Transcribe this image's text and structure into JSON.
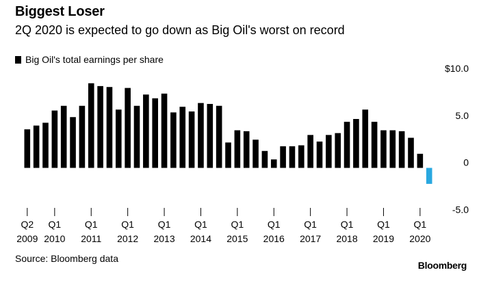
{
  "header": {
    "title": "Biggest Loser",
    "subtitle": "2Q 2020 is expected to go down as Big Oil's worst on record"
  },
  "legend": {
    "label": "Big Oil's total earnings per share"
  },
  "footer": {
    "source": "Source: Bloomberg data",
    "brand": "Bloomberg"
  },
  "colors": {
    "positive": "#000000",
    "negative": "#29a8e0"
  },
  "chart_data": {
    "type": "bar",
    "title": "Biggest Loser",
    "subtitle": "2Q 2020 is expected to go down as Big Oil's worst on record",
    "legend": "Big Oil's total earnings per share",
    "ylim": [
      -5.0,
      10.0
    ],
    "y_ticks": [
      10.0,
      5.0,
      0,
      -5.0
    ],
    "y_tick_labels": [
      "$10.0",
      "5.0",
      "0",
      "-5.0"
    ],
    "x_tick_labels": [
      {
        "index": 0,
        "q": "Q2",
        "year": "2009"
      },
      {
        "index": 3,
        "q": "Q1",
        "year": "2010"
      },
      {
        "index": 7,
        "q": "Q1",
        "year": "2011"
      },
      {
        "index": 11,
        "q": "Q1",
        "year": "2012"
      },
      {
        "index": 15,
        "q": "Q1",
        "year": "2013"
      },
      {
        "index": 19,
        "q": "Q1",
        "year": "2014"
      },
      {
        "index": 23,
        "q": "Q1",
        "year": "2015"
      },
      {
        "index": 27,
        "q": "Q1",
        "year": "2016"
      },
      {
        "index": 31,
        "q": "Q1",
        "year": "2017"
      },
      {
        "index": 35,
        "q": "Q1",
        "year": "2018"
      },
      {
        "index": 39,
        "q": "Q1",
        "year": "2019"
      },
      {
        "index": 43,
        "q": "Q1",
        "year": "2020"
      }
    ],
    "categories": [
      "Q2 2009",
      "Q3 2009",
      "Q4 2009",
      "Q1 2010",
      "Q2 2010",
      "Q3 2010",
      "Q4 2010",
      "Q1 2011",
      "Q2 2011",
      "Q3 2011",
      "Q4 2011",
      "Q1 2012",
      "Q2 2012",
      "Q3 2012",
      "Q4 2012",
      "Q1 2013",
      "Q2 2013",
      "Q3 2013",
      "Q4 2013",
      "Q1 2014",
      "Q2 2014",
      "Q3 2014",
      "Q4 2014",
      "Q1 2015",
      "Q2 2015",
      "Q3 2015",
      "Q4 2015",
      "Q1 2016",
      "Q2 2016",
      "Q3 2016",
      "Q4 2016",
      "Q1 2017",
      "Q2 2017",
      "Q3 2017",
      "Q4 2017",
      "Q1 2018",
      "Q2 2018",
      "Q3 2018",
      "Q4 2018",
      "Q1 2019",
      "Q2 2019",
      "Q3 2019",
      "Q4 2019",
      "Q1 2020",
      "Q2 2020"
    ],
    "values": [
      4.1,
      4.5,
      4.8,
      6.1,
      6.6,
      5.4,
      6.6,
      9.0,
      8.7,
      8.6,
      6.2,
      8.5,
      6.6,
      7.8,
      7.4,
      7.9,
      5.9,
      6.5,
      6.0,
      6.9,
      6.8,
      6.6,
      2.7,
      4.0,
      3.9,
      3.0,
      1.8,
      0.9,
      2.3,
      2.3,
      2.4,
      3.5,
      2.8,
      3.5,
      3.7,
      4.9,
      5.2,
      6.2,
      4.9,
      4.0,
      4.0,
      3.9,
      3.2,
      1.5,
      -1.7
    ]
  }
}
